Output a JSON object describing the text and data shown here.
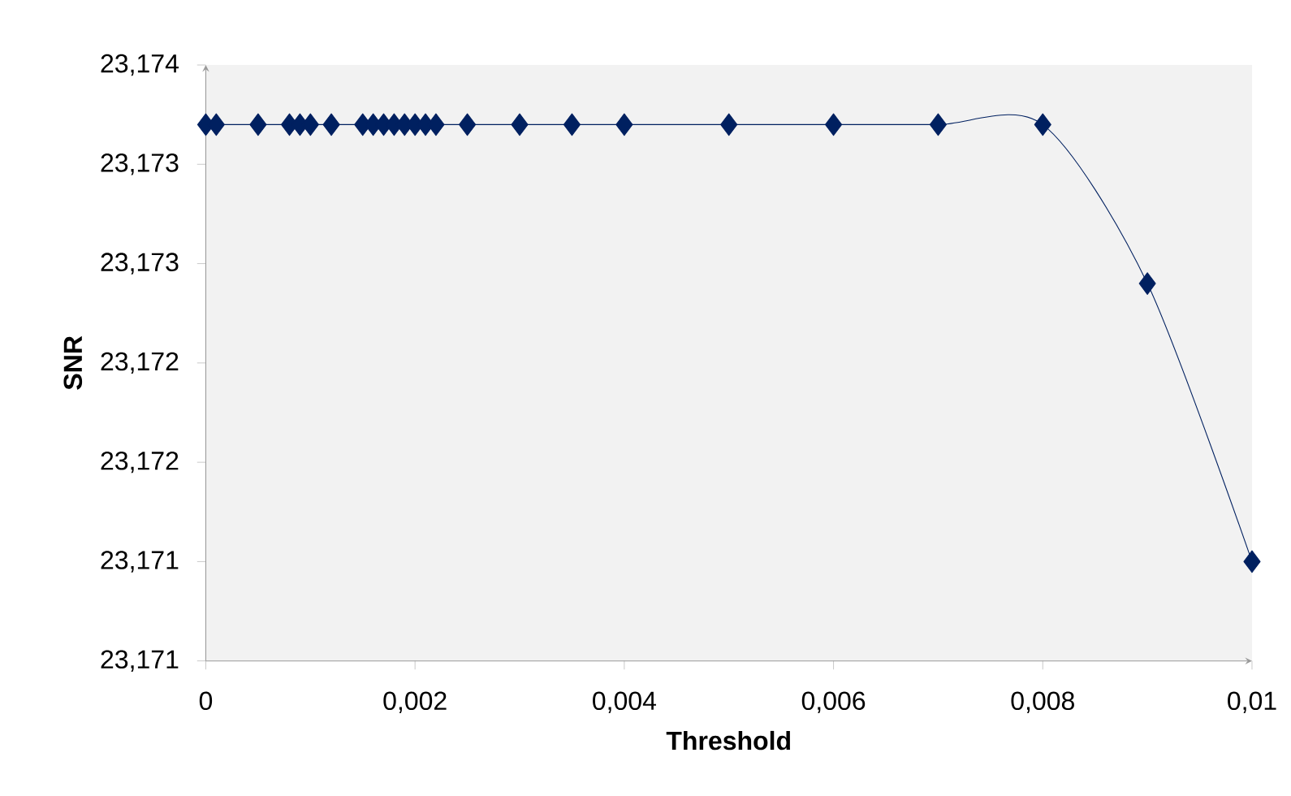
{
  "chart_data": {
    "type": "line",
    "xlabel": "Threshold",
    "ylabel": "SNR",
    "x": [
      0,
      0.0001,
      0.0005,
      0.0008,
      0.0009,
      0.001,
      0.0012,
      0.0015,
      0.0016,
      0.0017,
      0.0018,
      0.0019,
      0.002,
      0.0021,
      0.0022,
      0.0025,
      0.003,
      0.0035,
      0.004,
      0.005,
      0.006,
      0.007,
      0.008,
      0.009,
      0.01
    ],
    "series": [
      {
        "color": "#002060",
        "values": [
          23.1737,
          23.1737,
          23.1737,
          23.1737,
          23.1737,
          23.1737,
          23.1737,
          23.1737,
          23.1737,
          23.1737,
          23.1737,
          23.1737,
          23.1737,
          23.1737,
          23.1737,
          23.1737,
          23.1737,
          23.1737,
          23.1737,
          23.1737,
          23.1737,
          23.1737,
          23.1737,
          23.1729,
          23.1715
        ]
      }
    ],
    "xlim": [
      0,
      0.01
    ],
    "ylim": [
      23.171,
      23.174
    ],
    "xticks": [
      0,
      {
        "value": 0.002,
        "label": "0,002"
      },
      {
        "value": 0.004,
        "label": "0,004"
      },
      {
        "value": 0.006,
        "label": "0,006"
      },
      {
        "value": 0.008,
        "label": "0,008"
      },
      {
        "value": 0.01,
        "label": "0,01"
      }
    ],
    "yticks": [
      {
        "value": 23.171,
        "label": "23,171"
      },
      {
        "value": 23.1715,
        "label": "23,171"
      },
      {
        "value": 23.172,
        "label": "23,172"
      },
      {
        "value": 23.1725,
        "label": "23,172"
      },
      {
        "value": 23.173,
        "label": "23,173"
      },
      {
        "value": 23.1735,
        "label": "23,173"
      },
      {
        "value": 23.174,
        "label": "23,174"
      }
    ],
    "marker": "diamond",
    "line_style": "solid",
    "grid": false
  }
}
